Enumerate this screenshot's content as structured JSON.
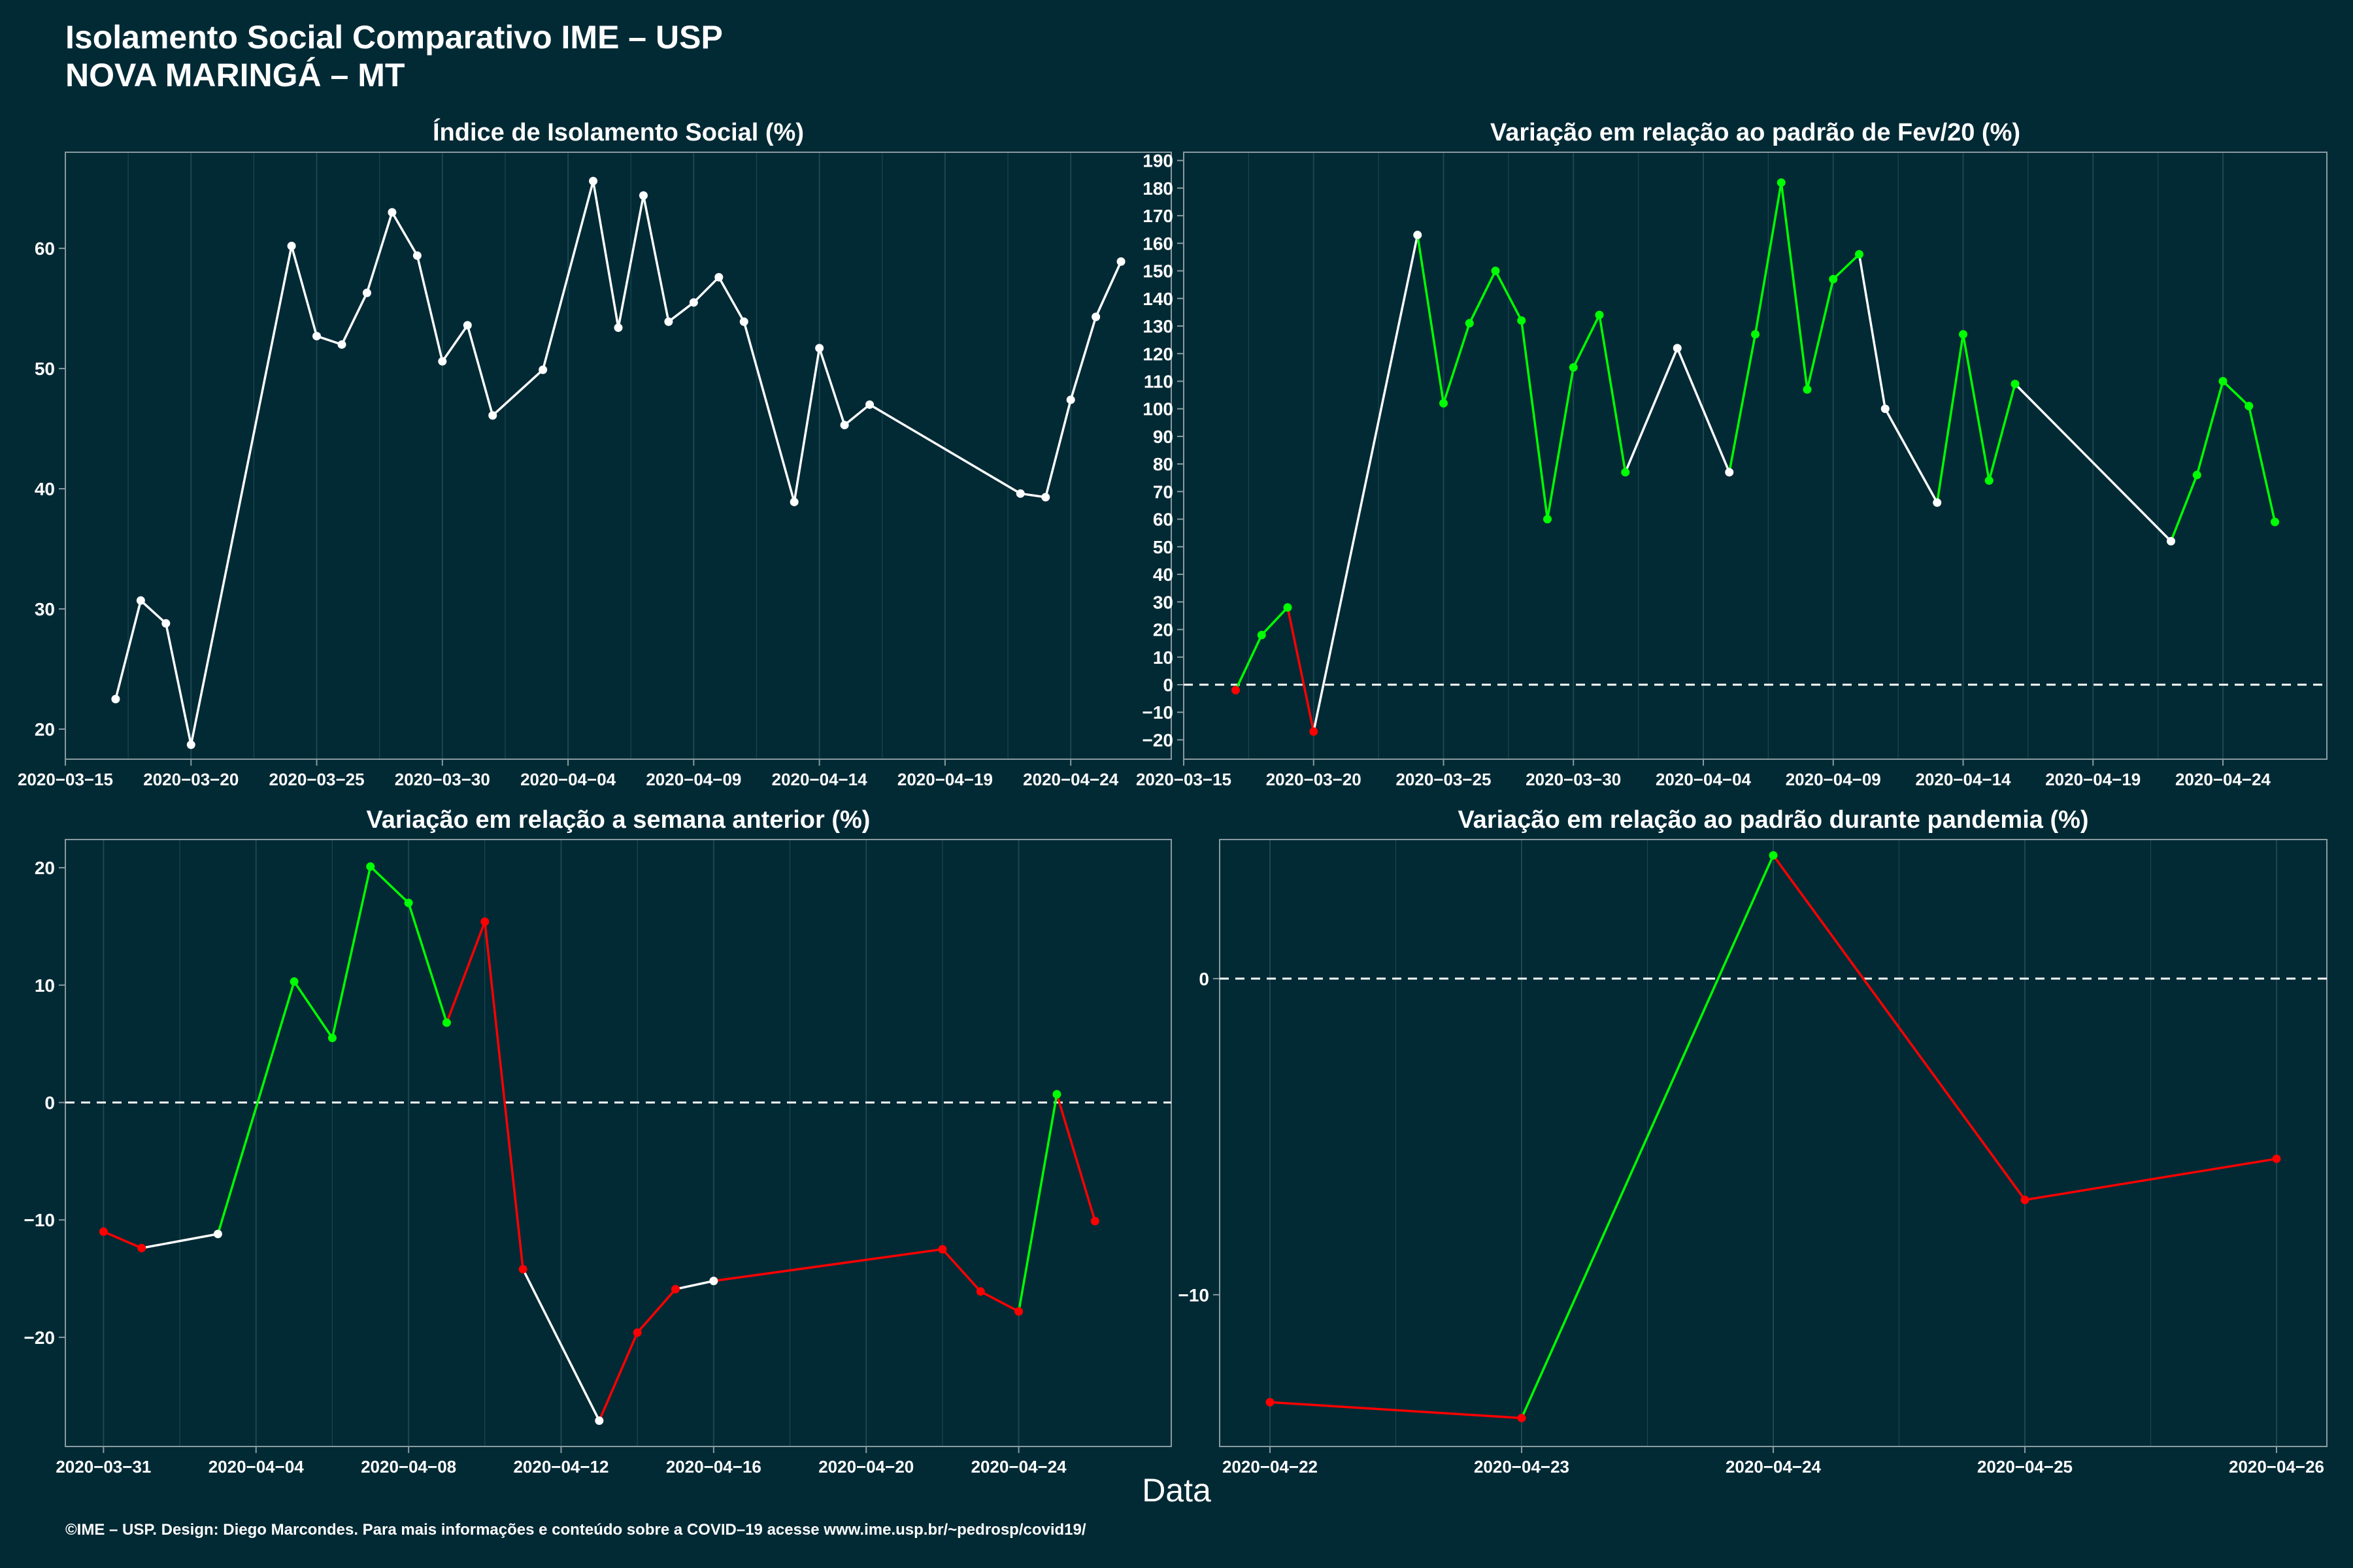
{
  "title": {
    "line1": "Isolamento Social Comparativo IME – USP",
    "line2": "NOVA MARINGÁ – MT"
  },
  "xaxis_title": "Data",
  "footer": "©IME – USP. Design: Diego Marcondes. Para mais informações e conteúdo sobre a COVID–19 acesse www.ime.usp.br/~pedrosp/covid19/",
  "colors": {
    "background": "#022a35",
    "axis": "#8a9ba0",
    "grid": "#1d4650",
    "neutral": "#ffffff",
    "positive": "#00ff00",
    "negative": "#ff0000"
  },
  "chart_data": [
    {
      "type": "line",
      "title": "Índice de Isolamento Social (%)",
      "xlabel": "Data",
      "x_axis": "date",
      "xlim": [
        "2020-03-15",
        "2020-04-28"
      ],
      "xticks": [
        "2020-03-15",
        "2020-03-20",
        "2020-03-25",
        "2020-03-30",
        "2020-04-04",
        "2020-04-09",
        "2020-04-14",
        "2020-04-19",
        "2020-04-24"
      ],
      "ylim": [
        17.5,
        68
      ],
      "yticks": [
        20,
        30,
        40,
        50,
        60
      ],
      "zero_line": false,
      "series": [
        {
          "x": [
            "2020-03-17",
            "2020-03-18",
            "2020-03-19",
            "2020-03-20",
            "2020-03-24",
            "2020-03-25",
            "2020-03-26",
            "2020-03-27",
            "2020-03-28",
            "2020-03-29",
            "2020-03-30",
            "2020-03-31",
            "2020-04-01",
            "2020-04-03",
            "2020-04-05",
            "2020-04-06",
            "2020-04-07",
            "2020-04-08",
            "2020-04-09",
            "2020-04-10",
            "2020-04-11",
            "2020-04-13",
            "2020-04-14",
            "2020-04-15",
            "2020-04-16",
            "2020-04-22",
            "2020-04-23",
            "2020-04-24",
            "2020-04-25",
            "2020-04-26"
          ],
          "y": [
            22.5,
            30.7,
            28.8,
            18.7,
            60.2,
            52.7,
            52.0,
            56.3,
            63.0,
            59.4,
            50.6,
            53.6,
            46.1,
            49.9,
            65.6,
            53.4,
            64.4,
            53.9,
            55.5,
            57.6,
            53.9,
            38.9,
            51.7,
            45.3,
            47.0,
            39.6,
            39.3,
            47.4,
            54.3,
            58.9
          ],
          "colors": [
            "neutral",
            "neutral",
            "neutral",
            "neutral",
            "neutral",
            "neutral",
            "neutral",
            "neutral",
            "neutral",
            "neutral",
            "neutral",
            "neutral",
            "neutral",
            "neutral",
            "neutral",
            "neutral",
            "neutral",
            "neutral",
            "neutral",
            "neutral",
            "neutral",
            "neutral",
            "neutral",
            "neutral",
            "neutral",
            "neutral",
            "neutral",
            "neutral",
            "neutral",
            "neutral"
          ]
        }
      ]
    },
    {
      "type": "line",
      "title": "Variação em relação ao padrão de Fev/20 (%)",
      "xlabel": "Data",
      "x_axis": "date",
      "xlim": [
        "2020-03-15",
        "2020-04-28"
      ],
      "xticks": [
        "2020-03-15",
        "2020-03-20",
        "2020-03-25",
        "2020-03-30",
        "2020-04-04",
        "2020-04-09",
        "2020-04-14",
        "2020-04-19",
        "2020-04-24"
      ],
      "ylim": [
        -27,
        193
      ],
      "yticks": [
        -20,
        -10,
        0,
        10,
        20,
        30,
        40,
        50,
        60,
        70,
        80,
        90,
        100,
        110,
        120,
        130,
        140,
        150,
        160,
        170,
        180,
        190
      ],
      "zero_line": true,
      "series": [
        {
          "x": [
            "2020-03-17",
            "2020-03-18",
            "2020-03-19",
            "2020-03-20",
            "2020-03-24",
            "2020-03-25",
            "2020-03-26",
            "2020-03-27",
            "2020-03-28",
            "2020-03-29",
            "2020-03-30",
            "2020-03-31",
            "2020-04-01",
            "2020-04-03",
            "2020-04-05",
            "2020-04-06",
            "2020-04-07",
            "2020-04-08",
            "2020-04-09",
            "2020-04-10",
            "2020-04-11",
            "2020-04-13",
            "2020-04-14",
            "2020-04-15",
            "2020-04-16",
            "2020-04-22",
            "2020-04-23",
            "2020-04-24",
            "2020-04-25",
            "2020-04-26"
          ],
          "y": [
            -2,
            18,
            28,
            -17,
            163,
            102,
            131,
            150,
            132,
            60,
            115,
            134,
            77,
            122,
            77,
            127,
            182,
            107,
            147,
            156,
            100,
            66,
            127,
            74,
            109,
            52,
            76,
            110,
            101,
            59
          ],
          "colors": [
            "negative",
            "positive",
            "positive",
            "negative",
            "neutral",
            "positive",
            "positive",
            "positive",
            "positive",
            "positive",
            "positive",
            "positive",
            "positive",
            "neutral",
            "neutral",
            "positive",
            "positive",
            "positive",
            "positive",
            "positive",
            "neutral",
            "neutral",
            "positive",
            "positive",
            "positive",
            "neutral",
            "positive",
            "positive",
            "positive",
            "positive"
          ]
        }
      ]
    },
    {
      "type": "line",
      "title": "Variação em relação a semana anterior (%)",
      "xlabel": "Data",
      "x_axis": "date",
      "xlim": [
        "2020-03-30",
        "2020-04-28"
      ],
      "xticks": [
        "2020-03-31",
        "2020-04-04",
        "2020-04-08",
        "2020-04-12",
        "2020-04-16",
        "2020-04-20",
        "2020-04-24"
      ],
      "ylim": [
        -29.3,
        22.4
      ],
      "yticks": [
        -20,
        -10,
        0,
        10,
        20
      ],
      "zero_line": true,
      "series": [
        {
          "x": [
            "2020-03-31",
            "2020-04-01",
            "2020-04-03",
            "2020-04-05",
            "2020-04-06",
            "2020-04-07",
            "2020-04-08",
            "2020-04-09",
            "2020-04-10",
            "2020-04-11",
            "2020-04-13",
            "2020-04-14",
            "2020-04-15",
            "2020-04-16",
            "2020-04-22",
            "2020-04-23",
            "2020-04-24",
            "2020-04-25",
            "2020-04-26"
          ],
          "y": [
            -11.0,
            -12.4,
            -11.2,
            10.3,
            5.5,
            20.1,
            17.0,
            6.8,
            15.4,
            -14.2,
            -27.1,
            -19.6,
            -15.9,
            -15.2,
            -12.5,
            -16.1,
            -17.8,
            0.7,
            -10.1
          ],
          "colors": [
            "negative",
            "negative",
            "neutral",
            "positive",
            "positive",
            "positive",
            "positive",
            "positive",
            "negative",
            "negative",
            "neutral",
            "negative",
            "negative",
            "neutral",
            "negative",
            "negative",
            "negative",
            "positive",
            "negative"
          ]
        }
      ]
    },
    {
      "type": "line",
      "title": "Variação em relação ao padrão durante pandemia (%)",
      "xlabel": "Data",
      "x_axis": "date",
      "xlim": [
        "2020-04-21.8",
        "2020-04-26.2"
      ],
      "xticks": [
        "2020-04-22",
        "2020-04-23",
        "2020-04-24",
        "2020-04-25",
        "2020-04-26"
      ],
      "ylim": [
        -14.8,
        4.4
      ],
      "yticks": [
        -10,
        0
      ],
      "zero_line": true,
      "series": [
        {
          "x": [
            "2020-04-22",
            "2020-04-23",
            "2020-04-24",
            "2020-04-25",
            "2020-04-26"
          ],
          "y": [
            -13.4,
            -13.9,
            3.9,
            -7.0,
            -5.7
          ],
          "colors": [
            "negative",
            "negative",
            "positive",
            "negative",
            "negative"
          ]
        }
      ]
    }
  ]
}
